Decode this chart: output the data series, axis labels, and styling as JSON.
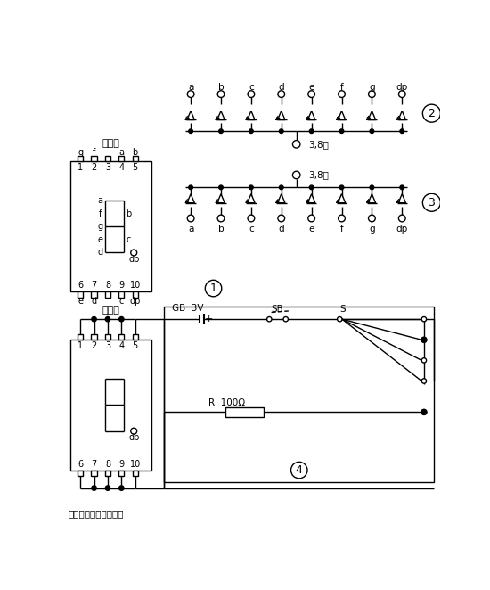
{
  "bg_color": "#ffffff",
  "line_color": "#000000",
  "seg_labels": [
    "a",
    "b",
    "c",
    "d",
    "e",
    "f",
    "g",
    "dp"
  ],
  "pin_top_labels": [
    "g",
    "f",
    "",
    "a",
    "b"
  ],
  "pin_bot_labels": [
    "e",
    "d",
    "",
    "c",
    "dp"
  ],
  "pin_top_nums": [
    "1",
    "2",
    "3",
    "4",
    "5"
  ],
  "pin_bot_nums": [
    "6",
    "7",
    "8",
    "9",
    "10"
  ],
  "footer_text": "电子制作天地收藏整理",
  "label_38": "3,8脚",
  "label_dianYuanJiao": "电源脚",
  "label_dp": "dp",
  "label_GB": "GB  3V",
  "label_SB": "SB",
  "label_S": "S",
  "label_R": "R  100Ω",
  "circ1_label": "1",
  "circ2_label": "2",
  "circ3_label": "3",
  "circ4_label": "4"
}
